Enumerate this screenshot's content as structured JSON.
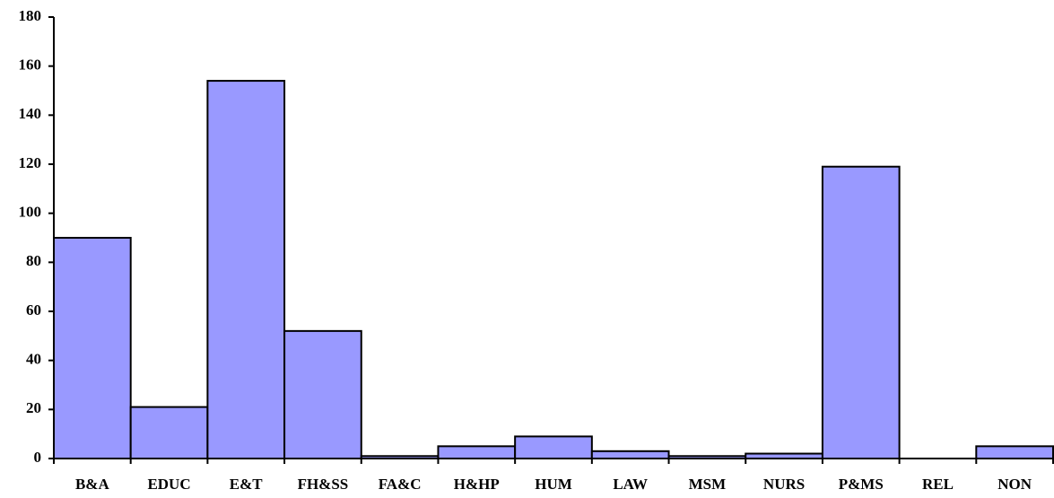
{
  "chart_data": {
    "type": "bar",
    "categories": [
      "B&A",
      "EDUC",
      "E&T",
      "FH&SS",
      "FA&C",
      "H&HP",
      "HUM",
      "LAW",
      "MSM",
      "NURS",
      "P&MS",
      "REL",
      "NON"
    ],
    "values": [
      90,
      21,
      154,
      52,
      1,
      5,
      9,
      3,
      1,
      2,
      119,
      0,
      5
    ],
    "color": "#9999ff",
    "ylim": [
      0,
      180
    ],
    "yticks": [
      0,
      20,
      40,
      60,
      80,
      100,
      120,
      140,
      160,
      180
    ],
    "grid": false
  }
}
